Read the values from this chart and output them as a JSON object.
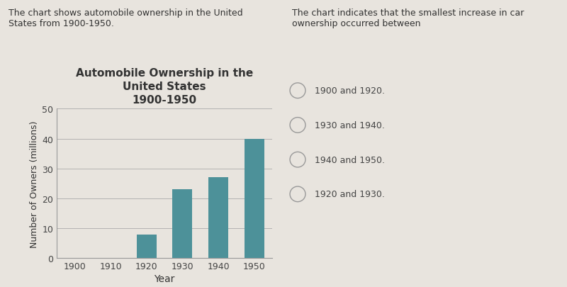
{
  "title_line1": "Automobile Ownership in the",
  "title_line2": "United States",
  "title_line3": "1900-1950",
  "xlabel": "Year",
  "ylabel": "Number of Owners (millions)",
  "categories": [
    "1900",
    "1910",
    "1920",
    "1930",
    "1940",
    "1950"
  ],
  "values": [
    0,
    0,
    8,
    23,
    27,
    40
  ],
  "bar_color": "#4d9199",
  "ylim": [
    0,
    50
  ],
  "yticks": [
    0,
    10,
    20,
    30,
    40,
    50
  ],
  "background_color": "#e8e4de",
  "left_caption": "The chart shows automobile ownership in the United\nStates from 1900-1950.",
  "right_caption": "The chart indicates that the smallest increase in car\nownership occurred between",
  "options": [
    "1900 and 1920.",
    "1930 and 1940.",
    "1940 and 1950.",
    "1920 and 1930."
  ],
  "title_fontsize": 11,
  "axis_fontsize": 9,
  "caption_fontsize": 9,
  "option_fontsize": 9
}
